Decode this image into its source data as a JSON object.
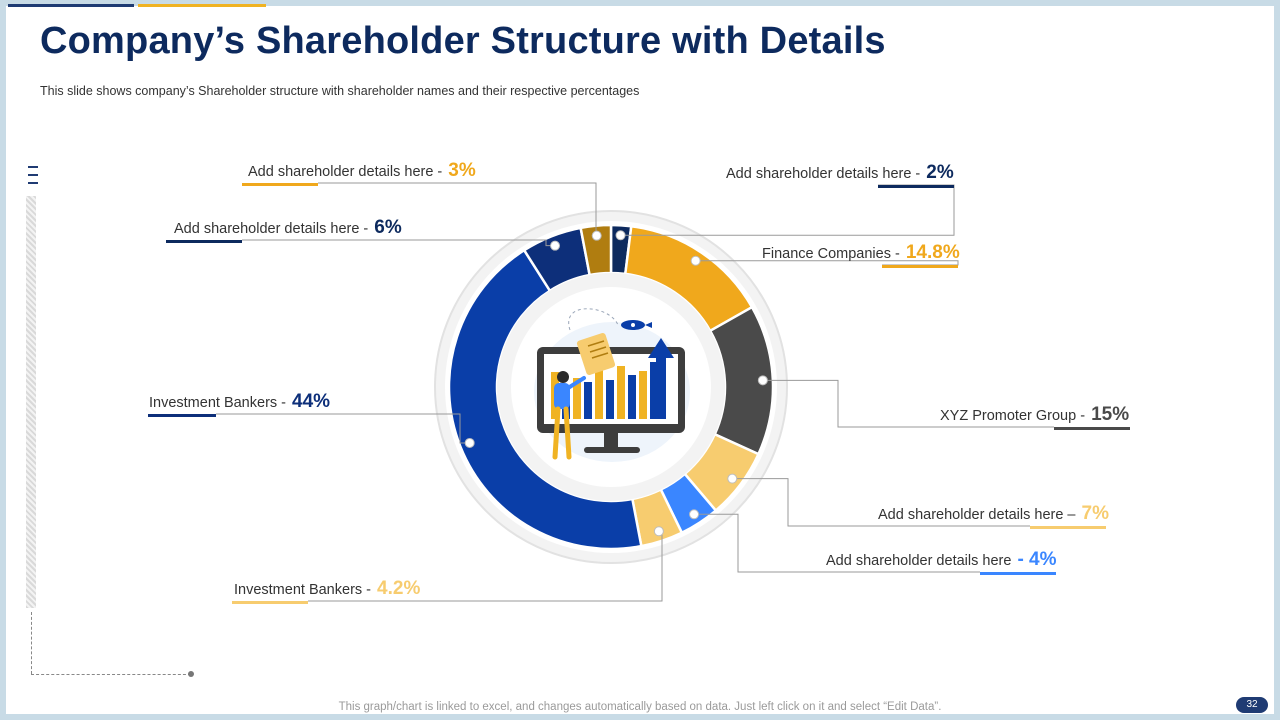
{
  "slide": {
    "title": "Company’s Shareholder Structure with Details",
    "subtitle": "This slide shows company’s Shareholder  structure with shareholder names and their respective percentages",
    "footer": "This graph/chart is linked to excel, and changes automatically based on data. Just left click on it and select “Edit Data”.",
    "page_number": "32"
  },
  "colors": {
    "navy": "#0d2a5e",
    "gold": "#f0b323",
    "accent_blue": "#3a86ff",
    "grey": "#4a4a4a"
  },
  "chart_data": {
    "type": "pie",
    "donut": true,
    "slices": [
      {
        "label": "Add shareholder details here - ",
        "value": 2,
        "display": "2%",
        "color": "#0d2a5e"
      },
      {
        "label": "Finance Companies - ",
        "value": 14.8,
        "display": "14.8%",
        "color": "#f0a81c"
      },
      {
        "label": "XYZ  Promoter Group - ",
        "value": 15,
        "display": "15%",
        "color": "#4a4a4a"
      },
      {
        "label": "Add shareholder details here – ",
        "value": 7,
        "display": "7%",
        "color": "#f7cc6f"
      },
      {
        "label": "Add shareholder details here ",
        "value": 4,
        "display": "- 4%",
        "color": "#3a86ff"
      },
      {
        "label": "Investment Bankers - ",
        "value": 4.2,
        "display": "4.2%",
        "color": "#f7cc6f"
      },
      {
        "label": "Investment Bankers - ",
        "value": 44,
        "display": "44%",
        "color": "#0a3ea8"
      },
      {
        "label": "Add shareholder details here - ",
        "value": 6,
        "display": "6%",
        "color": "#0d2f7a"
      },
      {
        "label": "Add shareholder details here - ",
        "value": 3,
        "display": "3%",
        "color": "#b07d10"
      }
    ]
  }
}
